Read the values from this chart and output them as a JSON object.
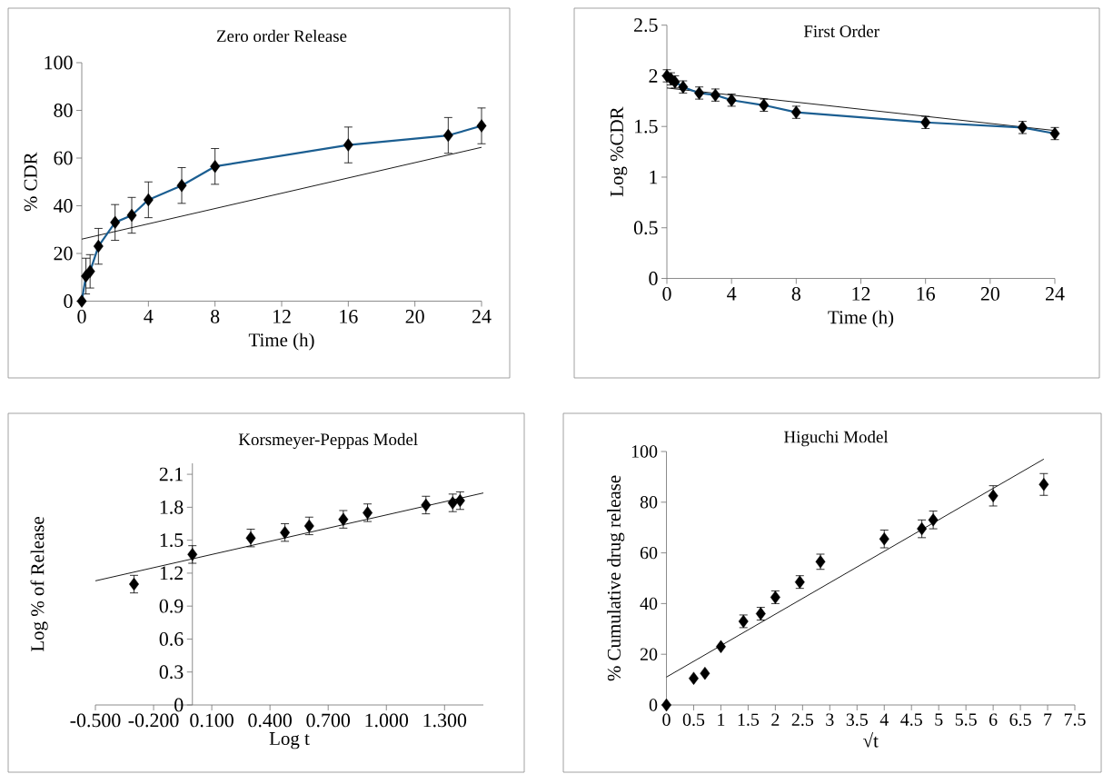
{
  "chart_data": [
    {
      "type": "line",
      "title": "Zero order Release",
      "xlabel": "Time (h)",
      "ylabel": "% CDR",
      "xlim": [
        0,
        24
      ],
      "ylim": [
        0,
        100
      ],
      "xticks": [
        0,
        4,
        8,
        12,
        16,
        20,
        24
      ],
      "yticks": [
        0,
        20,
        40,
        60,
        80,
        100
      ],
      "series": [
        {
          "type": "line",
          "color": "#1b5e91",
          "marker": "diamond",
          "x": [
            0,
            0.25,
            0.5,
            1,
            2,
            3,
            4,
            6,
            8,
            16,
            22,
            24
          ],
          "values": [
            0,
            10.5,
            12.5,
            23,
            33,
            36,
            42.5,
            48.5,
            56.5,
            65.5,
            69.5,
            73.5
          ],
          "errors": [
            null,
            7.5,
            7,
            7.5,
            7.5,
            7.5,
            7.5,
            7.5,
            7.5,
            7.5,
            7.5,
            7.5
          ]
        },
        {
          "type": "line",
          "color": "#000000",
          "marker": "none",
          "x": [
            0,
            24
          ],
          "values": [
            26,
            64.5
          ]
        }
      ]
    },
    {
      "type": "line",
      "title": "First Order",
      "xlabel": "Time (h)",
      "ylabel": "Log %CDR",
      "xlim": [
        0,
        24
      ],
      "ylim": [
        0,
        2.5
      ],
      "xticks": [
        0,
        4,
        8,
        12,
        16,
        20,
        24
      ],
      "yticks": [
        0,
        0.5,
        1,
        1.5,
        2,
        2.5
      ],
      "series": [
        {
          "type": "line",
          "color": "#1b5e91",
          "marker": "diamond",
          "x": [
            0,
            0.25,
            0.5,
            1,
            2,
            3,
            4,
            6,
            8,
            16,
            22,
            24
          ],
          "values": [
            2.0,
            1.97,
            1.94,
            1.89,
            1.83,
            1.81,
            1.76,
            1.71,
            1.64,
            1.54,
            1.49,
            1.43
          ],
          "errors": [
            0.06,
            0.06,
            0.06,
            0.06,
            0.06,
            0.06,
            0.06,
            0.06,
            0.06,
            0.06,
            0.06,
            0.06
          ]
        },
        {
          "type": "line",
          "color": "#000000",
          "marker": "none",
          "x": [
            0,
            24
          ],
          "values": [
            1.88,
            1.46
          ]
        }
      ]
    },
    {
      "type": "scatter",
      "title": "Korsmeyer-Peppas Model",
      "xlabel": "Log t",
      "ylabel": "Log % of Release",
      "xlim": [
        -0.5,
        1.5
      ],
      "ylim": [
        0,
        2.2
      ],
      "xticks": [
        {
          "value": -0.5,
          "label": "-0.500"
        },
        {
          "value": -0.2,
          "label": "-0.200"
        },
        {
          "value": 0.1,
          "label": "0.100"
        },
        {
          "value": 0.4,
          "label": "0.400"
        },
        {
          "value": 0.7,
          "label": "0.700"
        },
        {
          "value": 1.0,
          "label": "1.000"
        },
        {
          "value": 1.3,
          "label": "1.300"
        }
      ],
      "yticks": [
        0,
        0.3,
        0.6,
        0.9,
        1.2,
        1.5,
        1.8,
        2.1
      ],
      "series": [
        {
          "type": "scatter",
          "color": "#000000",
          "marker": "diamond",
          "x": [
            -0.301,
            0,
            0.301,
            0.477,
            0.602,
            0.778,
            0.903,
            1.204,
            1.342,
            1.38
          ],
          "values": [
            1.1,
            1.37,
            1.52,
            1.57,
            1.63,
            1.69,
            1.75,
            1.82,
            1.84,
            1.86
          ],
          "errors": [
            0.08,
            0.08,
            0.08,
            0.08,
            0.08,
            0.08,
            0.08,
            0.08,
            0.08,
            0.08
          ]
        },
        {
          "type": "line",
          "color": "#000000",
          "marker": "none",
          "x": [
            -0.5,
            1.5
          ],
          "values": [
            1.13,
            1.93
          ]
        }
      ]
    },
    {
      "type": "scatter",
      "title": "Higuchi Model",
      "xlabel": "√t",
      "ylabel": "% Cumulative drug release",
      "xlim": [
        0,
        7.5
      ],
      "ylim": [
        0,
        100
      ],
      "xticks": [
        0,
        0.5,
        1,
        1.5,
        2,
        2.5,
        3,
        3.5,
        4,
        4.5,
        5,
        5.5,
        6,
        6.5,
        7,
        7.5
      ],
      "yticks": [
        0,
        20,
        40,
        60,
        80,
        100
      ],
      "series": [
        {
          "type": "scatter",
          "color": "#000000",
          "marker": "diamond",
          "x": [
            0,
            0.5,
            0.707,
            1,
            1.414,
            1.732,
            2,
            2.449,
            2.828,
            4,
            4.69,
            4.899,
            6,
            6.93
          ],
          "values": [
            0,
            10.5,
            12.5,
            23,
            33,
            36,
            42.5,
            48.5,
            56.5,
            65.5,
            69.5,
            73,
            82.5,
            87
          ],
          "errors": [
            null,
            null,
            null,
            null,
            2.5,
            2.5,
            2.5,
            2.5,
            3,
            3.5,
            3.5,
            3.5,
            4,
            4.3
          ]
        },
        {
          "type": "line",
          "color": "#000000",
          "marker": "none",
          "x": [
            0,
            6.93
          ],
          "values": [
            11,
            97
          ]
        }
      ]
    }
  ]
}
